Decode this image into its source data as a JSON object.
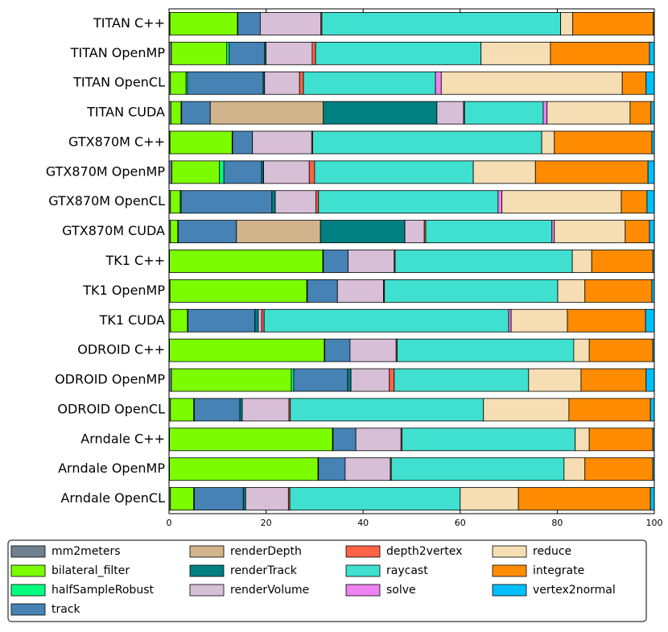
{
  "chart_data": {
    "type": "stacked_barh",
    "categories": [
      "TITAN C++",
      "TITAN OpenMP",
      "TITAN OpenCL",
      "TITAN CUDA",
      "GTX870M C++",
      "GTX870M OpenMP",
      "GTX870M OpenCL",
      "GTX870M CUDA",
      "TK1 C++",
      "TK1 OpenMP",
      "TK1 CUDA",
      "ODROID C++",
      "ODROID OpenMP",
      "ODROID OpenCL",
      "Arndale C++",
      "Arndale OpenMP",
      "Arndale OpenCL"
    ],
    "series": [
      {
        "name": "mm2meters",
        "color": "#708090",
        "values": [
          0.2,
          0.5,
          0.3,
          0.4,
          0.2,
          0.6,
          0.3,
          0.3,
          0.1,
          0.2,
          0.3,
          0.1,
          0.5,
          0.3,
          0.1,
          0.1,
          0.3
        ]
      },
      {
        "name": "bilateral_filter",
        "color": "#7CFC00",
        "values": [
          13.9,
          11.4,
          3.2,
          2.1,
          12.8,
          9.8,
          2.0,
          1.5,
          31.6,
          28.2,
          3.5,
          31.9,
          24.7,
          4.8,
          33.6,
          30.6,
          4.8
        ]
      },
      {
        "name": "halfSampleRobust",
        "color": "#00FF7F",
        "values": [
          0.1,
          0.5,
          0.3,
          0.1,
          0.1,
          0.9,
          0.2,
          0.1,
          0.1,
          0.1,
          0.1,
          0.1,
          0.5,
          0.1,
          0.1,
          0.1,
          0.1
        ]
      },
      {
        "name": "track",
        "color": "#4682B4",
        "values": [
          4.6,
          7.3,
          15.6,
          5.9,
          4.1,
          7.8,
          18.7,
          12.0,
          5.1,
          6.2,
          13.8,
          5.2,
          11.1,
          9.4,
          4.7,
          5.5,
          10.1
        ]
      },
      {
        "name": "renderDepth",
        "color": "#D2B48C",
        "values": [
          0,
          0,
          0,
          23.3,
          0,
          0,
          0,
          17.3,
          0,
          0,
          0,
          0,
          0,
          0,
          0,
          0,
          0
        ]
      },
      {
        "name": "renderTrack",
        "color": "#008080",
        "values": [
          0,
          0.3,
          0.3,
          23.4,
          0,
          0.4,
          0.7,
          17.4,
          0,
          0,
          0.7,
          0,
          0.7,
          0.5,
          0,
          0,
          0.5
        ]
      },
      {
        "name": "renderVolume",
        "color": "#D8BFD8",
        "values": [
          12.5,
          9.5,
          7.2,
          5.5,
          12.2,
          9.4,
          8.4,
          4.0,
          9.5,
          9.5,
          0.7,
          9.5,
          7.9,
          9.6,
          9.3,
          9.3,
          8.8
        ]
      },
      {
        "name": "depth2vertex",
        "color": "#FF6347",
        "values": [
          0.2,
          0.7,
          0.8,
          0.2,
          0.2,
          1.1,
          0.5,
          0.3,
          0.2,
          0.2,
          0.5,
          0.2,
          1.0,
          0.3,
          0.2,
          0.2,
          0.3
        ]
      },
      {
        "name": "raycast",
        "color": "#40E0D0",
        "values": [
          49.2,
          34.1,
          27.2,
          16.2,
          47.2,
          32.7,
          37.0,
          26.0,
          36.5,
          35.7,
          50.4,
          36.4,
          27.7,
          39.8,
          35.7,
          35.6,
          35.1
        ]
      },
      {
        "name": "solve",
        "color": "#EE82EE",
        "values": [
          0,
          0,
          1.2,
          0.8,
          0,
          0,
          0.8,
          0.5,
          0,
          0,
          0.5,
          0,
          0,
          0,
          0,
          0,
          0
        ]
      },
      {
        "name": "reduce",
        "color": "#F5DEB3",
        "values": [
          2.5,
          14.3,
          37.3,
          17.1,
          2.6,
          12.8,
          24.6,
          14.6,
          4.0,
          5.6,
          11.6,
          3.2,
          10.8,
          17.6,
          2.9,
          4.3,
          12.0
        ]
      },
      {
        "name": "integrate",
        "color": "#FF8C00",
        "values": [
          16.6,
          20.4,
          4.9,
          4.3,
          20.1,
          23.2,
          5.3,
          5.0,
          12.6,
          13.8,
          16.1,
          13.1,
          13.4,
          16.8,
          13.1,
          14.0,
          27.2
        ]
      },
      {
        "name": "vertex2normal",
        "color": "#00BFFF",
        "values": [
          0.2,
          1.0,
          1.7,
          0.7,
          0.5,
          1.3,
          1.5,
          1.0,
          0.3,
          0.5,
          1.8,
          0.3,
          1.7,
          0.8,
          0.3,
          0.3,
          0.8
        ]
      }
    ],
    "xlim": [
      0,
      100
    ],
    "xticks": [
      0,
      20,
      40,
      60,
      80,
      100
    ]
  }
}
